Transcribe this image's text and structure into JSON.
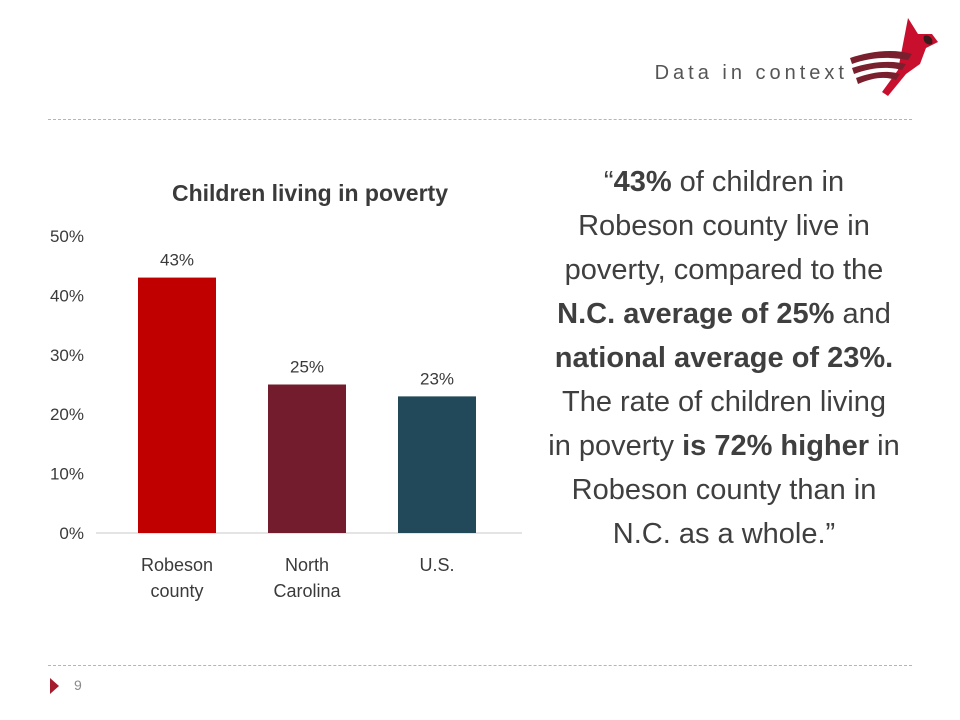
{
  "header": {
    "title": "Data in context",
    "logo_icon": "cardinal-bird-logo"
  },
  "chart_data": {
    "type": "bar",
    "title": "Children living in poverty",
    "categories": [
      "Robeson county",
      "North Carolina",
      "U.S."
    ],
    "category_lines": [
      [
        "Robeson",
        "county"
      ],
      [
        "North",
        "Carolina"
      ],
      [
        "U.S."
      ]
    ],
    "values": [
      43,
      25,
      23
    ],
    "value_labels": [
      "43%",
      "25%",
      "23%"
    ],
    "colors": [
      "#c00000",
      "#731c2e",
      "#21495a"
    ],
    "ylim": [
      0,
      50
    ],
    "yticks": [
      "0%",
      "10%",
      "20%",
      "30%",
      "40%",
      "50%"
    ],
    "grid": false,
    "legend": "none"
  },
  "quote": {
    "segments": [
      {
        "text": "“",
        "bold": false
      },
      {
        "text": "43%",
        "bold": true
      },
      {
        "text": " of children in Robeson county live in poverty, compared to the ",
        "bold": false
      },
      {
        "text": "N.C. average of 25%",
        "bold": true
      },
      {
        "text": " and ",
        "bold": false
      },
      {
        "text": "national average of 23%.",
        "bold": true
      },
      {
        "text": " The rate of children living in poverty ",
        "bold": false
      },
      {
        "text": "is 72% higher",
        "bold": true
      },
      {
        "text": " in Robeson county than in N.C. as a whole.”",
        "bold": false
      }
    ]
  },
  "footer": {
    "page_number": "9"
  },
  "colors": {
    "accent": "#a51c2f",
    "logo_dark": "#7a1f2e",
    "logo_red": "#c8102e"
  }
}
